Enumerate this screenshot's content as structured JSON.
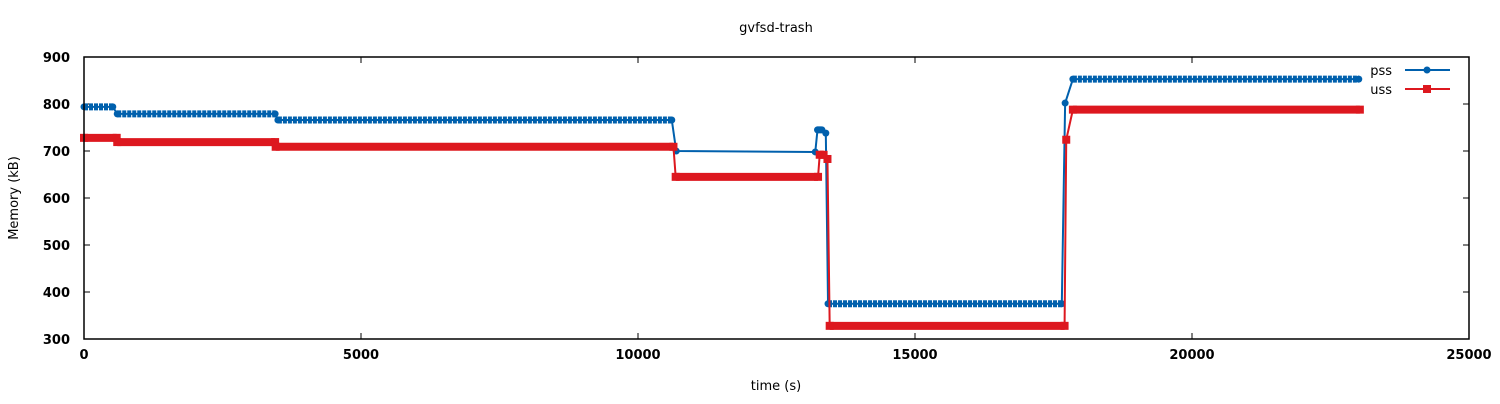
{
  "chart_data": {
    "type": "line",
    "title": "gvfsd-trash",
    "xlabel": "time (s)",
    "ylabel": "Memory (kB)",
    "xlim": [
      0,
      25000
    ],
    "ylim": [
      300,
      900
    ],
    "xticks": [
      0,
      5000,
      10000,
      15000,
      20000,
      25000
    ],
    "yticks": [
      300,
      400,
      500,
      600,
      700,
      800,
      900
    ],
    "grid": false,
    "legend_position": "top-right",
    "series": [
      {
        "name": "pss",
        "color": "#0060ad",
        "marker": "circle",
        "points": [
          [
            0,
            794
          ],
          [
            520,
            794
          ],
          [
            600,
            779
          ],
          [
            3450,
            779
          ],
          [
            3500,
            766
          ],
          [
            10610,
            766
          ],
          [
            10690,
            700
          ],
          [
            13200,
            698
          ],
          [
            13240,
            745
          ],
          [
            13320,
            745
          ],
          [
            13390,
            738
          ],
          [
            13430,
            375
          ],
          [
            17650,
            375
          ],
          [
            17710,
            802
          ],
          [
            17850,
            853
          ],
          [
            23010,
            853
          ]
        ]
      },
      {
        "name": "uss",
        "color": "#dd181f",
        "marker": "square",
        "points": [
          [
            0,
            728
          ],
          [
            590,
            728
          ],
          [
            600,
            719
          ],
          [
            3450,
            719
          ],
          [
            3460,
            709
          ],
          [
            10640,
            709
          ],
          [
            10680,
            645
          ],
          [
            13250,
            645
          ],
          [
            13280,
            692
          ],
          [
            13350,
            692
          ],
          [
            13420,
            683
          ],
          [
            13460,
            328
          ],
          [
            17700,
            328
          ],
          [
            17730,
            724
          ],
          [
            17850,
            788
          ],
          [
            23030,
            788
          ]
        ]
      }
    ]
  }
}
